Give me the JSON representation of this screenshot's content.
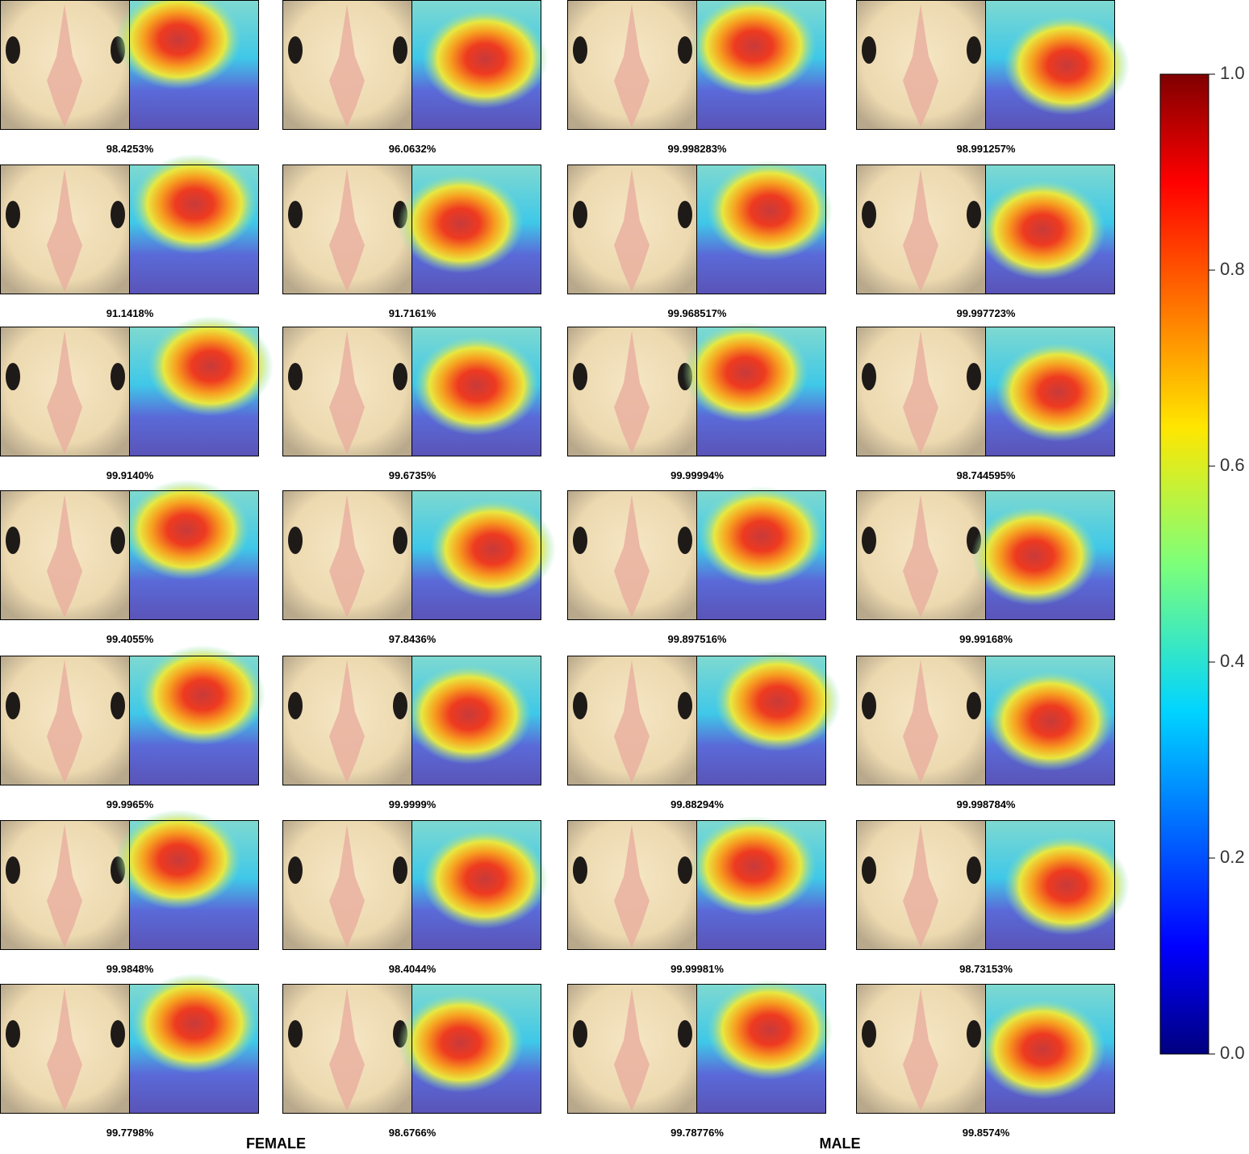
{
  "panels": [
    [
      "98.4253%",
      "96.0632%",
      "99.998283%",
      "98.991257%"
    ],
    [
      "91.1418%",
      "91.7161%",
      "99.968517%",
      "99.997723%"
    ],
    [
      "99.9140%",
      "99.6735%",
      "99.99994%",
      "98.744595%"
    ],
    [
      "99.4055%",
      "97.8436%",
      "99.897516%",
      "99.99168%"
    ],
    [
      "99.9965%",
      "99.9999%",
      "99.88294%",
      "99.998784%"
    ],
    [
      "99.9848%",
      "98.4044%",
      "99.99981%",
      "98.73153%"
    ],
    [
      "99.7798%",
      "98.6766%",
      "99.78776%",
      "99.8574%"
    ]
  ],
  "groups": [
    "FEMALE",
    "MALE"
  ],
  "colorbar": {
    "ylim": [
      0,
      1
    ],
    "yticks": [
      {
        "value": 0,
        "label": "0.0"
      },
      0.2,
      0.4,
      0.6,
      0.8,
      {
        "value": 1,
        "label": "1.0"
      }
    ]
  }
}
